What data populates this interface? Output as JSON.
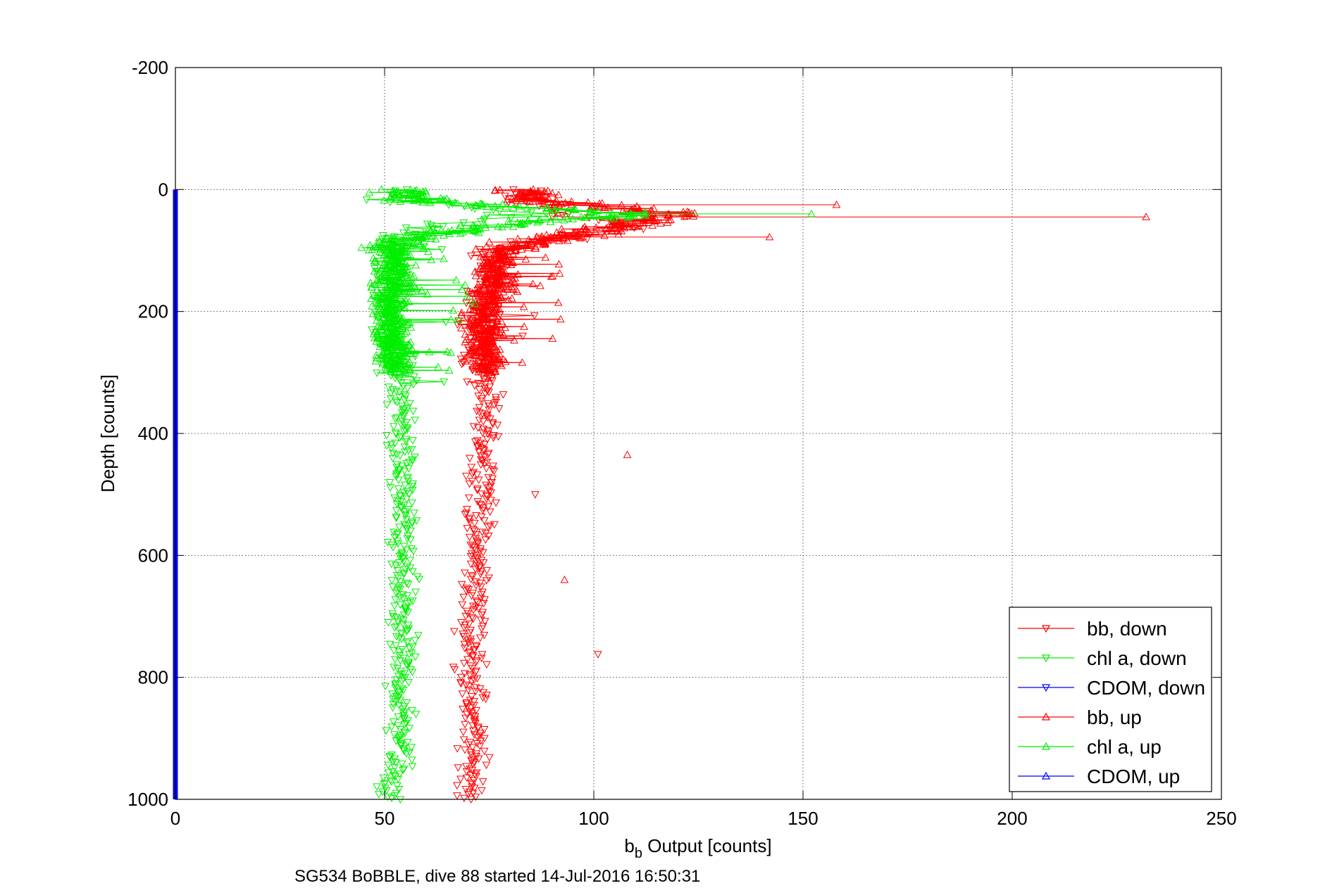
{
  "chart_data": {
    "type": "scatter",
    "xlabel_main": "b",
    "xlabel_sub": "b",
    "xlabel_rest": " Output [counts]",
    "ylabel": "Depth [counts]",
    "caption": "SG534 BoBBLE, dive 88 started 14-Jul-2016 16:50:31",
    "xlim": [
      0,
      250
    ],
    "ylim": [
      1000,
      -200
    ],
    "y_reversed": true,
    "grid": true,
    "x_ticks": [
      "0",
      "50",
      "100",
      "150",
      "200",
      "250"
    ],
    "y_ticks": [
      "-200",
      "0",
      "200",
      "400",
      "600",
      "800",
      "1000"
    ],
    "legend_position": "bottom-right",
    "series": [
      {
        "name": "bb, down",
        "color": "#ff0000",
        "marker": "triangle-down",
        "profile": [
          [
            0,
            80
          ],
          [
            20,
            82
          ],
          [
            40,
            95
          ],
          [
            60,
            110
          ],
          [
            80,
            90
          ],
          [
            100,
            76
          ],
          [
            150,
            75
          ],
          [
            200,
            73
          ],
          [
            250,
            72
          ],
          [
            300,
            73
          ],
          [
            350,
            74
          ],
          [
            400,
            74
          ],
          [
            450,
            74
          ],
          [
            500,
            74
          ],
          [
            550,
            72
          ],
          [
            600,
            72
          ],
          [
            650,
            72
          ],
          [
            700,
            71
          ],
          [
            750,
            71
          ],
          [
            800,
            71
          ],
          [
            850,
            71
          ],
          [
            900,
            71
          ],
          [
            950,
            71
          ],
          [
            1000,
            71
          ]
        ]
      },
      {
        "name": "chl a, down",
        "color": "#00ee00",
        "marker": "triangle-down",
        "profile": [
          [
            0,
            54
          ],
          [
            20,
            55
          ],
          [
            40,
            85
          ],
          [
            60,
            62
          ],
          [
            80,
            54
          ],
          [
            100,
            53
          ],
          [
            150,
            52
          ],
          [
            200,
            51
          ],
          [
            250,
            52
          ],
          [
            300,
            53
          ],
          [
            350,
            54
          ],
          [
            400,
            54
          ],
          [
            450,
            54
          ],
          [
            500,
            54
          ],
          [
            550,
            54
          ],
          [
            600,
            54
          ],
          [
            650,
            54
          ],
          [
            700,
            54
          ],
          [
            750,
            54
          ],
          [
            800,
            54
          ],
          [
            850,
            54
          ],
          [
            900,
            54
          ],
          [
            950,
            53
          ],
          [
            1000,
            51
          ]
        ]
      },
      {
        "name": "CDOM, down",
        "color": "#0000ff",
        "marker": "triangle-down",
        "constant_x": 0,
        "depth_range": [
          0,
          1000
        ]
      },
      {
        "name": "bb, up",
        "color": "#ff0000",
        "marker": "triangle-up",
        "profile": [
          [
            0,
            82
          ],
          [
            20,
            90
          ],
          [
            40,
            120
          ],
          [
            60,
            105
          ],
          [
            80,
            90
          ],
          [
            100,
            78
          ],
          [
            150,
            76
          ],
          [
            200,
            74
          ],
          [
            250,
            74
          ],
          [
            300,
            75
          ]
        ]
      },
      {
        "name": "chl a, up",
        "color": "#00ee00",
        "marker": "triangle-up",
        "profile": [
          [
            0,
            55
          ],
          [
            20,
            60
          ],
          [
            40,
            110
          ],
          [
            60,
            75
          ],
          [
            80,
            56
          ],
          [
            100,
            52
          ],
          [
            150,
            52
          ],
          [
            200,
            51
          ],
          [
            250,
            52
          ],
          [
            300,
            53
          ]
        ]
      },
      {
        "name": "CDOM, up",
        "color": "#0000ff",
        "marker": "triangle-up",
        "constant_x": 0,
        "depth_range": [
          0,
          300
        ]
      }
    ],
    "notable_points": [
      {
        "series": "bb, up",
        "x": 232,
        "y": 45
      },
      {
        "series": "bb, up",
        "x": 158,
        "y": 25
      },
      {
        "series": "bb, up",
        "x": 142,
        "y": 78
      },
      {
        "series": "bb, up",
        "x": 108,
        "y": 435
      },
      {
        "series": "bb, down",
        "x": 101,
        "y": 762
      },
      {
        "series": "bb, up",
        "x": 93,
        "y": 640
      },
      {
        "series": "bb, down",
        "x": 86,
        "y": 500
      },
      {
        "series": "chl a, up",
        "x": 152,
        "y": 40
      }
    ]
  }
}
